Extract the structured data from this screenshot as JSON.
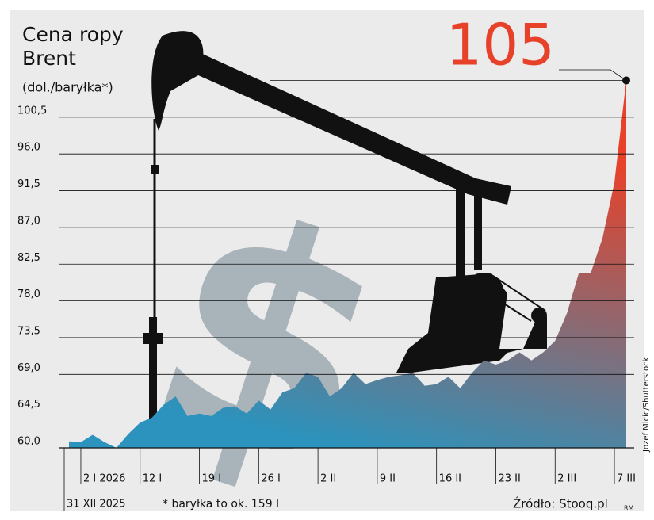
{
  "chart_data": {
    "type": "area",
    "title": "Cena ropy Brent",
    "subtitle": "(dol./baryłka*)",
    "footnote": "* baryłka to ok. 159 l",
    "source": "Źródło: Stooq.pl",
    "photo_credit": "Jozef Micic/Shutterstock",
    "author": "RM",
    "categories": [
      "31 XII 2025",
      "2 I 2026",
      null,
      null,
      null,
      null,
      "12 I",
      null,
      null,
      null,
      null,
      "19 I",
      null,
      null,
      null,
      null,
      "26 I",
      null,
      null,
      null,
      null,
      "2 II",
      null,
      null,
      null,
      null,
      "9 II",
      null,
      null,
      null,
      null,
      "16 II",
      null,
      null,
      null,
      null,
      "23 II",
      null,
      null,
      null,
      null,
      "2 III",
      null,
      null,
      null,
      null,
      "7 III",
      null
    ],
    "values": [
      60.8,
      60.7,
      61.6,
      60.7,
      60.0,
      61.7,
      63.1,
      63.7,
      65.3,
      66.3,
      63.9,
      64.2,
      63.9,
      64.9,
      65.1,
      64.2,
      65.8,
      64.7,
      66.8,
      67.3,
      69.2,
      68.7,
      66.3,
      67.3,
      69.2,
      67.8,
      68.3,
      68.7,
      68.9,
      69.2,
      67.6,
      67.8,
      68.7,
      67.3,
      69.2,
      70.7,
      70.2,
      70.7,
      71.7,
      70.7,
      71.7,
      73.1,
      76.5,
      81.4,
      81.4,
      85.7,
      92.5,
      105
    ],
    "colors": [
      "#2b93bd",
      "#e8412a"
    ],
    "ylim": [
      60,
      105
    ],
    "yticks": [
      {
        "value": 60,
        "label": "60,0"
      },
      {
        "value": 64.5,
        "label": "64,5"
      },
      {
        "value": 69,
        "label": "69,0"
      },
      {
        "value": 73.5,
        "label": "73,5"
      },
      {
        "value": 78,
        "label": "78,0"
      },
      {
        "value": 82.5,
        "label": "82,5"
      },
      {
        "value": 87,
        "label": "87,0"
      },
      {
        "value": 91.5,
        "label": "91,5"
      },
      {
        "value": 96,
        "label": "96,0"
      },
      {
        "value": 100.5,
        "label": "100,5"
      }
    ],
    "grid": true
  }
}
